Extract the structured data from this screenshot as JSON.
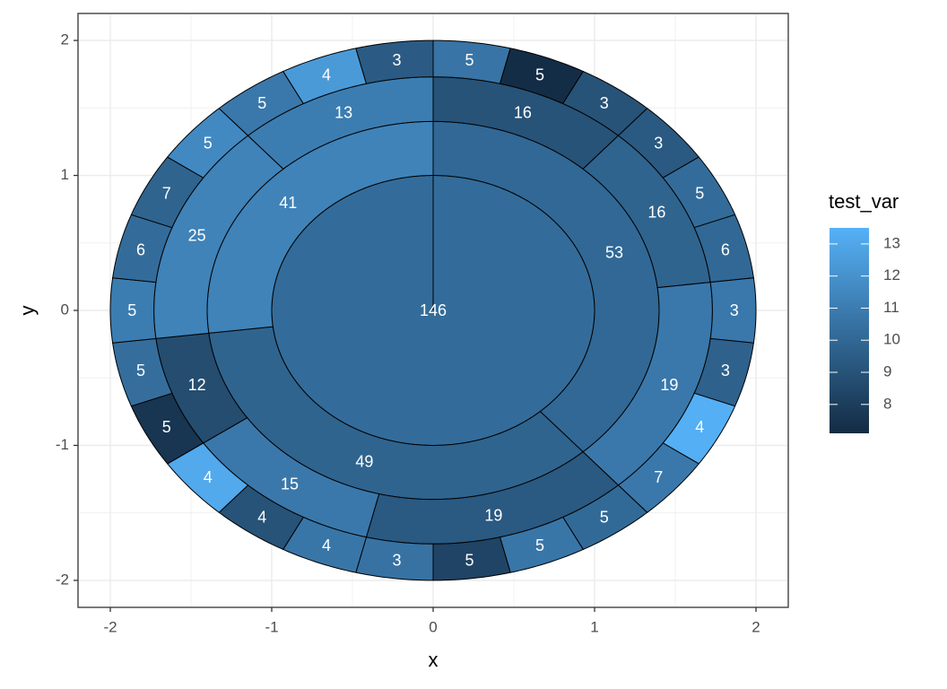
{
  "chart_data": {
    "type": "sunburst",
    "xlabel": "x",
    "ylabel": "y",
    "xlim": [
      -2.2,
      2.2
    ],
    "ylim": [
      -2.2,
      2.2
    ],
    "xticks": [
      -2,
      -1,
      0,
      1,
      2
    ],
    "yticks": [
      -2,
      -1,
      0,
      1,
      2
    ],
    "grid": true,
    "colorbar": {
      "title": "test_var",
      "lim": [
        7.1,
        13.5
      ],
      "ticks": [
        8,
        9,
        10,
        11,
        12,
        13
      ],
      "low": "#132b43",
      "high": "#56b1f7"
    },
    "root": {
      "value": 146,
      "test_var": 10.2,
      "children": [
        {
          "value": 53,
          "test_var": 10.0,
          "children": [
            {
              "value": 16,
              "test_var": 9.0,
              "children": [
                {
                  "value": 5,
                  "test_var": 10.6
                },
                {
                  "value": 5,
                  "test_var": 7.2
                },
                {
                  "value": 3,
                  "test_var": 9.0
                }
              ]
            },
            {
              "value": 16,
              "test_var": 9.8,
              "children": [
                {
                  "value": 3,
                  "test_var": 9.3
                },
                {
                  "value": 5,
                  "test_var": 10.2
                },
                {
                  "value": 6,
                  "test_var": 10.0
                }
              ]
            },
            {
              "value": 19,
              "test_var": 10.8,
              "children": [
                {
                  "value": 3,
                  "test_var": 10.8
                },
                {
                  "value": 3,
                  "test_var": 9.7
                },
                {
                  "value": 4,
                  "test_var": 13.4
                },
                {
                  "value": 7,
                  "test_var": 10.8
                }
              ]
            }
          ]
        },
        {
          "value": 49,
          "test_var": 9.8,
          "children": [
            {
              "value": 19,
              "test_var": 9.3,
              "children": [
                {
                  "value": 5,
                  "test_var": 10.1
                },
                {
                  "value": 5,
                  "test_var": 10.7
                },
                {
                  "value": 5,
                  "test_var": 8.3
                },
                {
                  "value": 3,
                  "test_var": 10.5
                }
              ]
            },
            {
              "value": 15,
              "test_var": 10.8,
              "children": [
                {
                  "value": 4,
                  "test_var": 10.7
                },
                {
                  "value": 4,
                  "test_var": 9.0
                },
                {
                  "value": 4,
                  "test_var": 13.1
                }
              ]
            },
            {
              "value": 12,
              "test_var": 8.7,
              "children": [
                {
                  "value": 5,
                  "test_var": 7.6
                },
                {
                  "value": 5,
                  "test_var": 10.3
                }
              ]
            }
          ]
        },
        {
          "value": 41,
          "test_var": 11.3,
          "children": [
            {
              "value": 25,
              "test_var": 11.3,
              "children": [
                {
                  "value": 5,
                  "test_var": 11.0
                },
                {
                  "value": 6,
                  "test_var": 10.2
                },
                {
                  "value": 7,
                  "test_var": 9.8
                },
                {
                  "value": 5,
                  "test_var": 11.6
                }
              ]
            },
            {
              "value": 13,
              "test_var": 11.0,
              "children": [
                {
                  "value": 5,
                  "test_var": 10.8
                },
                {
                  "value": 4,
                  "test_var": 12.4
                },
                {
                  "value": 3,
                  "test_var": 9.4
                }
              ]
            }
          ]
        }
      ]
    }
  }
}
